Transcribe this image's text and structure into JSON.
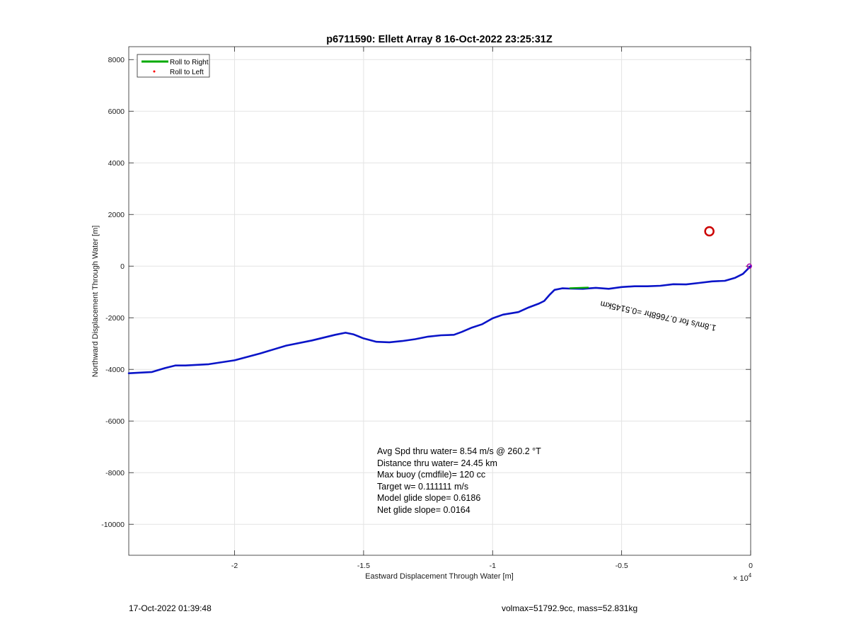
{
  "chart_data": {
    "type": "line",
    "title": "p6711590: Ellett Array 8 16-Oct-2022 23:25:31Z",
    "xlabel": "Eastward Displacement Through Water [m]",
    "ylabel": "Northward Displacement Through Water [m]",
    "x_exponent_label": "× 10",
    "x_exponent_power": "4",
    "xlim": [
      -24100,
      0
    ],
    "ylim": [
      -11200,
      8500
    ],
    "xticks": [
      -20000,
      -15000,
      -10000,
      -5000,
      0
    ],
    "xtick_labels": [
      "-2",
      "-1.5",
      "-1",
      "-0.5",
      "0"
    ],
    "yticks": [
      8000,
      6000,
      4000,
      2000,
      0,
      -2000,
      -4000,
      -6000,
      -8000,
      -10000
    ],
    "ytick_labels": [
      "8000",
      "6000",
      "4000",
      "2000",
      "0",
      "-2000",
      "-4000",
      "-6000",
      "-8000",
      "-10000"
    ],
    "grid": true,
    "legend_position": "top-left",
    "legend": [
      {
        "label": "Roll to Right",
        "color": "#00aa00",
        "style": "line"
      },
      {
        "label": "Roll to Left",
        "color": "#ff0000",
        "style": "dot"
      }
    ],
    "series": [
      {
        "color": "#0a14c8",
        "x": [
          -24100,
          -23200,
          -22700,
          -22300,
          -21900,
          -21000,
          -20000,
          -19000,
          -18000,
          -17000,
          -16100,
          -15700,
          -15400,
          -15000,
          -14500,
          -14000,
          -13500,
          -13000,
          -12500,
          -12000,
          -11500,
          -11200,
          -10800,
          -10400,
          -10000,
          -9600,
          -9000,
          -8600,
          -8200,
          -8000,
          -7800,
          -7600,
          -7300,
          -7000,
          -6500,
          -6000,
          -5500,
          -5000,
          -4500,
          -4000,
          -3500,
          -3000,
          -2500,
          -2000,
          -1500,
          -1000,
          -600,
          -300,
          0
        ],
        "y": [
          -4150,
          -4100,
          -3950,
          -3850,
          -3850,
          -3800,
          -3650,
          -3380,
          -3080,
          -2880,
          -2660,
          -2580,
          -2640,
          -2800,
          -2930,
          -2950,
          -2900,
          -2830,
          -2730,
          -2680,
          -2660,
          -2550,
          -2380,
          -2250,
          -2020,
          -1880,
          -1780,
          -1600,
          -1450,
          -1350,
          -1120,
          -920,
          -860,
          -870,
          -880,
          -840,
          -880,
          -810,
          -780,
          -780,
          -760,
          -700,
          -710,
          -650,
          -590,
          -570,
          -450,
          -300,
          0
        ]
      },
      {
        "color": "#00aa00",
        "x": [
          -7000,
          -6600,
          -6300
        ],
        "y": [
          -850,
          -840,
          -830
        ]
      }
    ],
    "markers": [
      {
        "name": "target-circle",
        "x": -1600,
        "y": 1350,
        "color": "#cc0000"
      },
      {
        "name": "end-point",
        "x": -50,
        "y": 0,
        "color": "#aa00aa"
      }
    ],
    "annotation": {
      "text": "1.8m/s for 0.7668hr =0.5145km",
      "x": -5800,
      "y": -1350,
      "rotation_deg": 192
    },
    "stats_lines": [
      "Avg Spd thru water=  8.54 m/s @ 260.2 °T",
      "Distance thru water= 24.45 km",
      "Max buoy (cmdfile)= 120 cc",
      "Target w= 0.111111 m/s",
      "Model glide slope= 0.6186",
      "Net glide slope= 0.0164"
    ]
  },
  "footer": {
    "left": "17-Oct-2022 01:39:48",
    "right": "volmax=51792.9cc, mass=52.831kg"
  }
}
